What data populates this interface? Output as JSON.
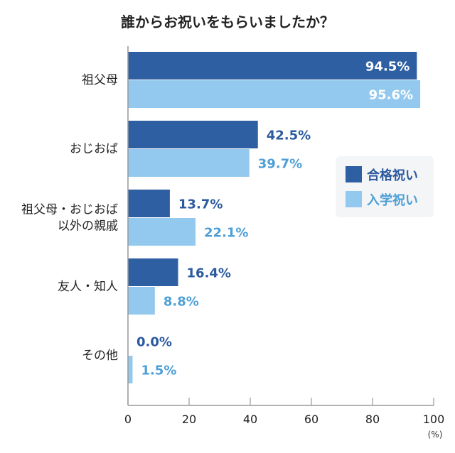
{
  "chart_data": {
    "type": "bar",
    "orientation": "horizontal",
    "title": "誰からお祝いをもらいましたか？",
    "categories": [
      "祖父母",
      "おじおば",
      "祖父母・おじおば\n以外の親戚",
      "友人・知人",
      "その他"
    ],
    "series": [
      {
        "name": "合格祝い",
        "values": [
          94.5,
          42.5,
          13.7,
          16.4,
          0.0
        ],
        "color": "#2e5fa3",
        "label_color": "#2b5a9e"
      },
      {
        "name": "入学祝い",
        "values": [
          95.6,
          39.7,
          22.1,
          8.8,
          1.5
        ],
        "color": "#93c9ee",
        "label_color": "#4d9fd6"
      }
    ],
    "value_labels": [
      [
        "94.5%",
        "42.5%",
        "13.7%",
        "16.4%",
        "0.0%"
      ],
      [
        "95.6%",
        "39.7%",
        "22.1%",
        "8.8%",
        "1.5%"
      ]
    ],
    "xlim": [
      0,
      100
    ],
    "xticks": [
      "0",
      "20",
      "40",
      "60",
      "80",
      "100"
    ],
    "xunit": "(%)",
    "grid": false,
    "legend_position": "right"
  }
}
